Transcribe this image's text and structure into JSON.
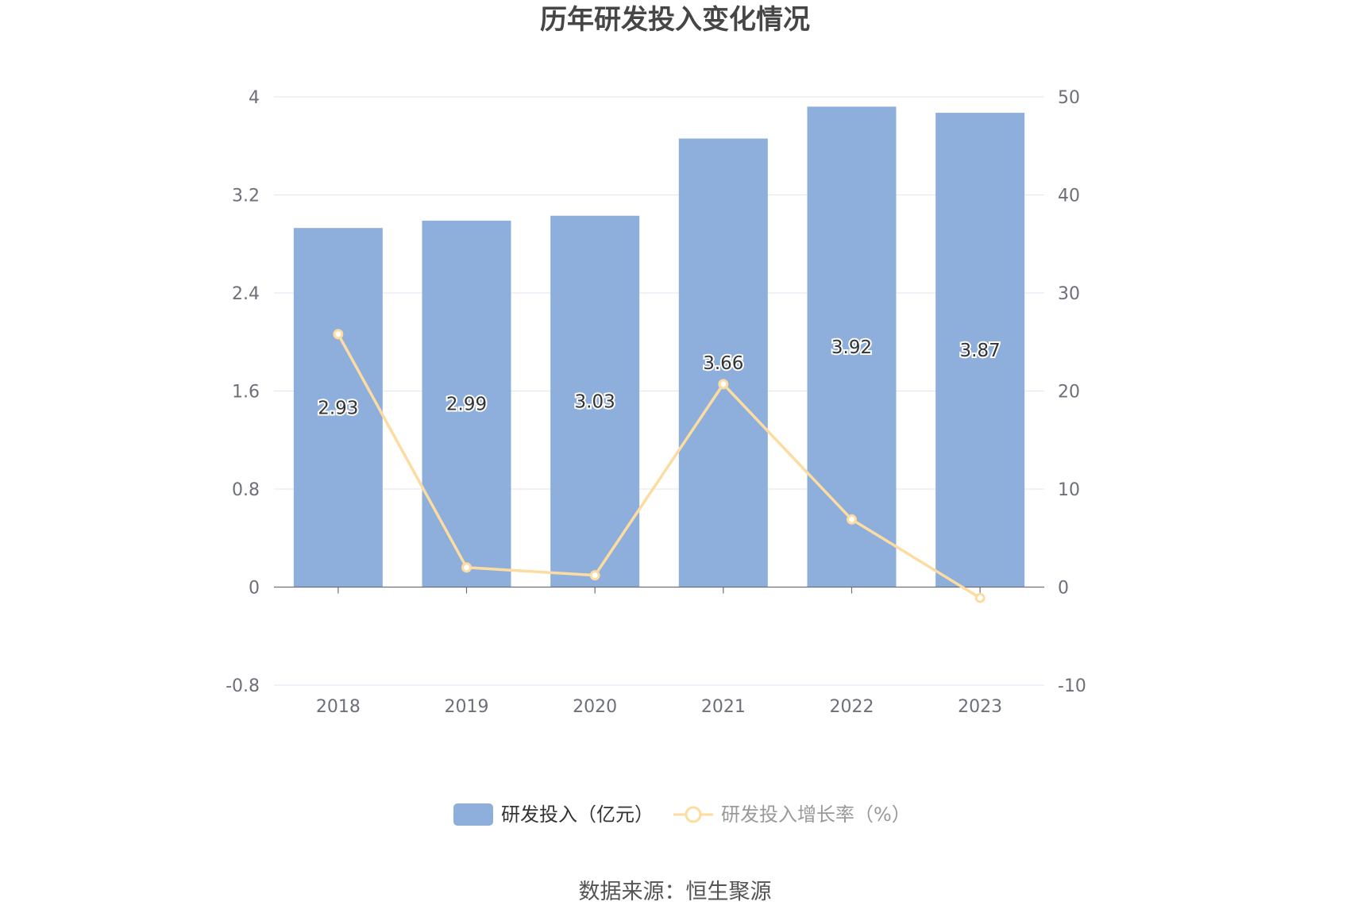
{
  "chart_data": {
    "type": "bar",
    "title": "历年研发投入变化情况",
    "categories": [
      "2018",
      "2019",
      "2020",
      "2021",
      "2022",
      "2023"
    ],
    "series": [
      {
        "name": "研发投入（亿元）",
        "type": "bar",
        "axis": "left",
        "values": [
          2.93,
          2.99,
          3.03,
          3.66,
          3.92,
          3.87
        ],
        "value_labels": [
          "2.93",
          "2.99",
          "3.03",
          "3.66",
          "3.92",
          "3.87"
        ],
        "color": "#8eaedb"
      },
      {
        "name": "研发投入增长率（%）",
        "type": "line",
        "axis": "right",
        "values": [
          25.8,
          2.0,
          1.2,
          20.7,
          6.9,
          -1.1
        ],
        "color": "#fcdca0"
      }
    ],
    "y_left": {
      "range": [
        -0.8,
        4
      ],
      "ticks": [
        "4",
        "3.2",
        "2.4",
        "1.6",
        "0.8",
        "0",
        "-0.8"
      ],
      "tick_values": [
        4,
        3.2,
        2.4,
        1.6,
        0.8,
        0,
        -0.8
      ]
    },
    "y_right": {
      "range": [
        -10,
        50
      ],
      "ticks": [
        "50",
        "40",
        "30",
        "20",
        "10",
        "0",
        "-10"
      ],
      "tick_values": [
        50,
        40,
        30,
        20,
        10,
        0,
        -10
      ]
    },
    "grid": true,
    "legend_position": "bottom-center",
    "colors": {
      "grid": "#e0e6f1",
      "axis": "#6e7079",
      "title": "#464646"
    }
  },
  "source": "数据来源：恒生聚源"
}
